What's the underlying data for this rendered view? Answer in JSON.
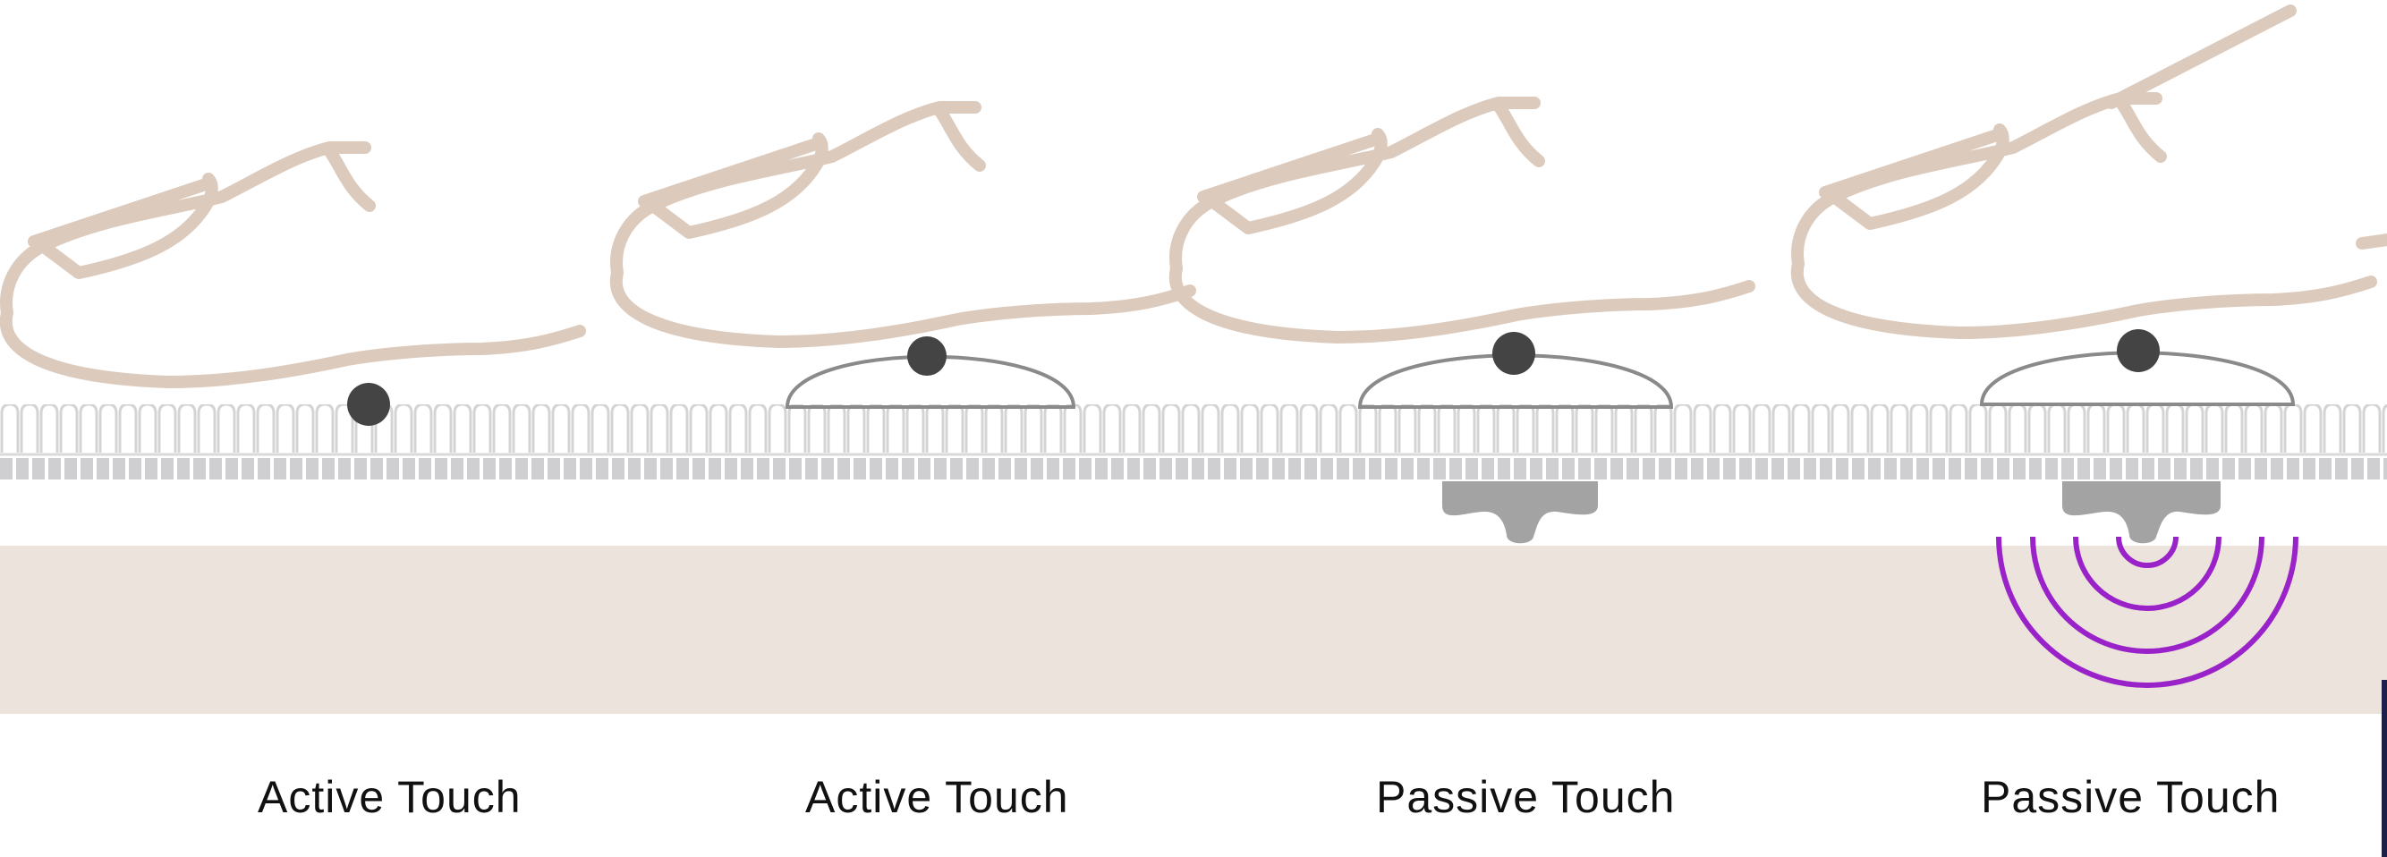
{
  "diagram": {
    "panels": [
      {
        "caption": "Active Touch"
      },
      {
        "caption": "Active Touch"
      },
      {
        "caption": "Passive Touch"
      },
      {
        "caption": "Passive Touch"
      }
    ]
  },
  "colors": {
    "finger": "#dccbbd",
    "base_band": "#ebe3dc",
    "surface": "#cfcfd2",
    "object": "#444444",
    "shell": "#8a8a8a",
    "stem": "#a3a3a3",
    "waves": "#9a22c9",
    "edge_bar": "#1c1f4a"
  }
}
